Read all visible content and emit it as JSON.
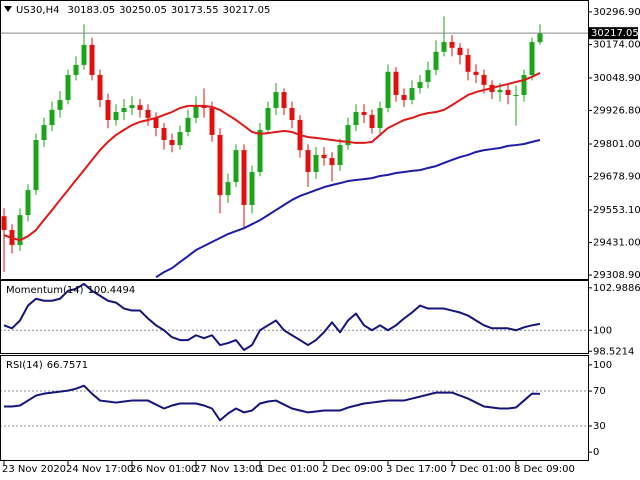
{
  "chart_data": [
    {
      "type": "candlestick",
      "symbol": "US30,H4",
      "categories": [
        "23 Nov 2020",
        null,
        null,
        null,
        null,
        null,
        null,
        null,
        "24 Nov 17:00",
        null,
        null,
        null,
        null,
        null,
        null,
        null,
        "26 Nov 01:00",
        null,
        null,
        null,
        null,
        null,
        null,
        null,
        "27 Nov 13:00",
        null,
        null,
        null,
        null,
        null,
        null,
        null,
        "1 Dec 01:00",
        null,
        null,
        null,
        null,
        null,
        null,
        null,
        "2 Dec 09:00",
        null,
        null,
        null,
        null,
        null,
        null,
        null,
        "3 Dec 17:00",
        null,
        null,
        null,
        null,
        null,
        null,
        null,
        "7 Dec 01:00",
        null,
        null,
        null,
        null,
        null,
        null,
        null,
        "8 Dec 09:00",
        null,
        null,
        null
      ],
      "open": [
        29530,
        29478,
        29422,
        29534,
        29628,
        29816,
        29872,
        29929,
        29966,
        30060,
        30098,
        30173,
        30060,
        29966,
        29891,
        29921,
        29936,
        29947,
        29929,
        29899,
        29861,
        29816,
        29797,
        29846,
        29899,
        29947,
        29936,
        29835,
        29609,
        29658,
        29778,
        29572,
        29696,
        29854,
        29936,
        29996,
        29936,
        29891,
        29778,
        29696,
        29760,
        29748,
        29722,
        29797,
        29872,
        29921,
        29910,
        29861,
        29936,
        30072,
        29985,
        29966,
        30011,
        30034,
        30079,
        30147,
        30184,
        30162,
        30135,
        30072,
        30060,
        30023,
        29996,
        30004,
        29985,
        29985,
        30060,
        30183.05
      ],
      "high": [
        29560,
        29500,
        29560,
        29650,
        29840,
        29900,
        29960,
        30000,
        30080,
        30130,
        30250,
        30200,
        30080,
        29990,
        29950,
        29970,
        29980,
        29970,
        29950,
        29920,
        29880,
        29840,
        29870,
        29930,
        29980,
        30010,
        29960,
        29860,
        29690,
        29800,
        29800,
        29720,
        29880,
        29960,
        30030,
        30010,
        29960,
        29910,
        29800,
        29790,
        29790,
        29770,
        29820,
        29900,
        29950,
        29950,
        29930,
        29960,
        30100,
        30090,
        30010,
        30040,
        30060,
        30110,
        30190,
        30280,
        30210,
        30180,
        30160,
        30100,
        30080,
        30040,
        30030,
        30030,
        30020,
        30080,
        30200,
        30250.05
      ],
      "low": [
        29320,
        29390,
        29400,
        29510,
        29610,
        29790,
        29850,
        29900,
        29950,
        30040,
        30080,
        30040,
        29940,
        29860,
        29870,
        29890,
        29910,
        29900,
        29870,
        29830,
        29780,
        29770,
        29780,
        29830,
        29880,
        29900,
        29810,
        29540,
        29580,
        29640,
        29480,
        29540,
        29680,
        29840,
        29910,
        29910,
        29860,
        29750,
        29640,
        29670,
        29720,
        29660,
        29700,
        29780,
        29850,
        29880,
        29840,
        29840,
        29920,
        29960,
        29940,
        29950,
        29990,
        30010,
        30060,
        30130,
        30130,
        30100,
        30040,
        30030,
        29990,
        29970,
        29960,
        29950,
        29870,
        29960,
        30040,
        30173.55
      ],
      "close": [
        29478,
        29422,
        29534,
        29628,
        29816,
        29872,
        29929,
        29966,
        30060,
        30098,
        30173,
        30060,
        29966,
        29891,
        29921,
        29936,
        29947,
        29929,
        29899,
        29861,
        29816,
        29797,
        29846,
        29899,
        29947,
        29936,
        29835,
        29609,
        29658,
        29778,
        29572,
        29696,
        29854,
        29936,
        29996,
        29936,
        29891,
        29778,
        29696,
        29760,
        29748,
        29722,
        29797,
        29872,
        29921,
        29910,
        29861,
        29936,
        30072,
        29985,
        29966,
        30011,
        30034,
        30079,
        30147,
        30184,
        30162,
        30135,
        30072,
        30060,
        30023,
        29996,
        30004,
        29985,
        29985,
        30060,
        30184,
        30217.05
      ],
      "up_color": "#1aa51a",
      "down_color": "#e01010",
      "series": [
        {
          "color": "#e01818",
          "values": [
            29459,
            29448,
            29440,
            29455,
            29478,
            29516,
            29553,
            29591,
            29628,
            29666,
            29703,
            29741,
            29778,
            29809,
            29835,
            29854,
            29872,
            29884,
            29891,
            29899,
            29910,
            29921,
            29936,
            29944,
            29944,
            29944,
            29940,
            29929,
            29910,
            29891,
            29869,
            29846,
            29839,
            29842,
            29846,
            29850,
            29846,
            29835,
            29827,
            29824,
            29820,
            29816,
            29812,
            29809,
            29805,
            29805,
            29809,
            29835,
            29861,
            29876,
            29891,
            29899,
            29910,
            29917,
            29921,
            29929,
            29947,
            29966,
            29985,
            29996,
            30004,
            30011,
            30019,
            30026,
            30034,
            30041,
            30053,
            30068
          ]
        },
        {
          "color": "#1c1ca8",
          "values": [
            null,
            null,
            null,
            null,
            null,
            null,
            null,
            null,
            null,
            null,
            null,
            null,
            null,
            null,
            null,
            null,
            null,
            null,
            null,
            29301,
            29320,
            29335,
            29358,
            29380,
            29403,
            29418,
            29433,
            29448,
            29463,
            29474,
            29485,
            29500,
            29515,
            29534,
            29553,
            29572,
            29591,
            29606,
            29617,
            29628,
            29639,
            29647,
            29654,
            29662,
            29666,
            29669,
            29673,
            29681,
            29685,
            29692,
            29696,
            29700,
            29703,
            29711,
            29718,
            29730,
            29741,
            29752,
            29760,
            29771,
            29778,
            29782,
            29786,
            29794,
            29797,
            29801,
            29809,
            29816
          ]
        }
      ],
      "ylim": [
        29298,
        30334
      ],
      "yticks": [
        {
          "value": 30296.9,
          "label": "30296.90"
        },
        {
          "value": 30174,
          "label": "30174.00"
        },
        {
          "value": 30048.9,
          "label": "30048.90"
        },
        {
          "value": 29926.8,
          "label": "29926.80"
        },
        {
          "value": 29801,
          "label": "29801.00"
        },
        {
          "value": 29678.9,
          "label": "29678.90"
        },
        {
          "value": 29553.1,
          "label": "29553.10"
        },
        {
          "value": 29431,
          "label": "29431.00"
        },
        {
          "value": 29308.9,
          "label": "29308.90"
        }
      ],
      "grid": false
    },
    {
      "type": "line",
      "title": "Momentum(14)",
      "series": [
        {
          "color": "#14147a",
          "values": [
            100.35,
            100.14,
            100.69,
            101.74,
            102.22,
            102.08,
            102.08,
            102.22,
            102.78,
            102.92,
            103.27,
            102.78,
            102.43,
            102.08,
            101.95,
            101.53,
            101.39,
            101.39,
            100.83,
            100.35,
            100,
            99.51,
            99.31,
            99.31,
            99.65,
            99.44,
            99.65,
            98.96,
            99.1,
            99.31,
            98.61,
            98.96,
            100,
            100.35,
            100.69,
            100,
            99.65,
            99.31,
            98.96,
            99.31,
            99.86,
            100.56,
            99.86,
            100.69,
            101.18,
            100.35,
            100,
            100.35,
            100,
            100.35,
            100.83,
            101.25,
            101.74,
            101.53,
            101.53,
            101.53,
            101.39,
            101.25,
            101.04,
            100.69,
            100.35,
            100.14,
            100.14,
            100.14,
            100,
            100.21,
            100.35,
            100.4494
          ]
        }
      ],
      "ylim": [
        98.47,
        103.4
      ],
      "yticks": [
        98.5214,
        100,
        102.9886
      ],
      "levels": [
        100
      ],
      "grid": false
    },
    {
      "type": "line",
      "title": "RSI(14)",
      "series": [
        {
          "color": "#14147a",
          "values": [
            52.3,
            52.3,
            53.4,
            59.1,
            64.8,
            67.0,
            68.2,
            69.3,
            70.5,
            72.7,
            76.1,
            67.0,
            59.1,
            58.0,
            56.8,
            58.0,
            59.1,
            59.1,
            59.1,
            54.5,
            50.0,
            53.4,
            55.7,
            55.7,
            55.7,
            53.4,
            50.0,
            36.4,
            44.3,
            50.0,
            45.5,
            47.7,
            55.7,
            58.0,
            59.1,
            54.5,
            50.0,
            47.7,
            45.5,
            46.6,
            47.7,
            47.7,
            47.7,
            51.1,
            53.4,
            55.7,
            56.8,
            58.0,
            59.1,
            59.1,
            59.1,
            61.4,
            63.6,
            65.9,
            68.2,
            68.2,
            68.2,
            64.8,
            61.4,
            56.8,
            52.3,
            51.1,
            50.0,
            50.0,
            51.1,
            59.1,
            67.0,
            66.7571
          ]
        }
      ],
      "ylim": [
        -9,
        109
      ],
      "yticks": [
        0,
        30,
        70,
        100
      ],
      "levels": [
        70,
        30
      ],
      "grid": false
    }
  ]
}
